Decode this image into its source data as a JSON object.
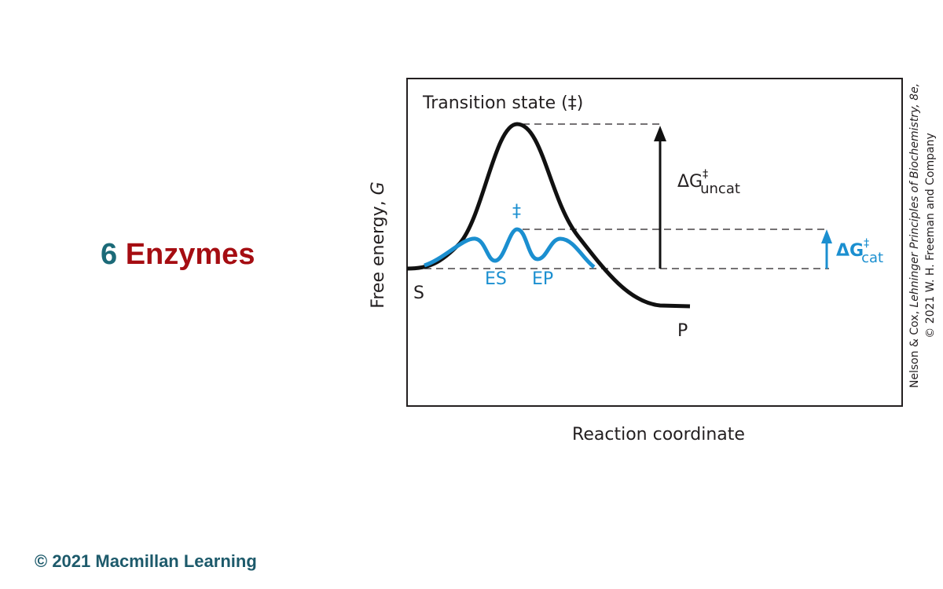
{
  "slide": {
    "number": "6",
    "title": "Enzymes",
    "footer": "© 2021 Macmillan Learning"
  },
  "diagram": {
    "transition_state_label": "Transition state (‡)",
    "catalyzed_transition_state": "‡",
    "delta_g_uncat": {
      "symbol": "ΔG",
      "superscript": "‡",
      "subscript": "uncat"
    },
    "delta_g_cat": {
      "symbol": "ΔG",
      "superscript": "‡",
      "subscript": "cat"
    },
    "substrate": "S",
    "product": "P",
    "es": "ES",
    "ep": "EP",
    "y_axis_label": {
      "text": "Free energy, ",
      "symbol": "G"
    },
    "x_axis_label": "Reaction coordinate"
  },
  "credit": {
    "authors": "Nelson & Cox, ",
    "book": "Lehninger Principles of Biochemistry, 8e,",
    "publisher": "© 2021 W. H. Freeman and Company"
  }
}
